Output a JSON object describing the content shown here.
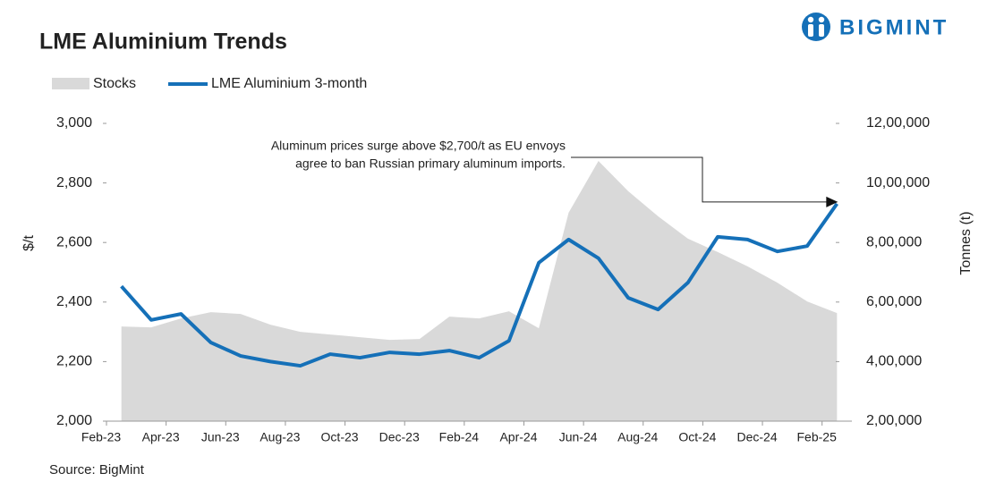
{
  "chart_data": {
    "type": "line",
    "title": "LME Aluminium Trends",
    "logo": "BIGMINT",
    "source": "Source: BigMint",
    "ylabel": "$/t",
    "y2label": "Tonnes (t)",
    "annotation": [
      "Aluminum prices surge above $2,700/t as EU envoys",
      "agree to ban Russian primary aluminum imports."
    ],
    "categories": [
      "Feb-23",
      null,
      "Apr-23",
      null,
      "Jun-23",
      null,
      "Aug-23",
      null,
      "Oct-23",
      null,
      "Dec-23",
      null,
      "Feb-24",
      null,
      "Apr-24",
      null,
      "Jun-24",
      null,
      "Aug-24",
      null,
      "Oct-24",
      null,
      "Dec-24",
      null,
      "Feb-25"
    ],
    "series": [
      {
        "name": "Stocks",
        "kind": "area",
        "axis": "y2",
        "color": "#d9d9d9",
        "values": [
          518000,
          515000,
          545000,
          566000,
          560000,
          524000,
          500000,
          491000,
          482000,
          473000,
          476000,
          551000,
          545000,
          569000,
          512000,
          900000,
          1074000,
          972000,
          888000,
          813000,
          768000,
          720000,
          665000,
          602000,
          563000
        ]
      },
      {
        "name": "LME Aluminium 3-month",
        "kind": "line",
        "axis": "y",
        "color": "#1570b8",
        "values": [
          2453,
          2340,
          2360,
          2264,
          2219,
          2200,
          2186,
          2225,
          2213,
          2231,
          2225,
          2237,
          2213,
          2270,
          2532,
          2610,
          2547,
          2414,
          2375,
          2465,
          2619,
          2610,
          2570,
          2588,
          2730
        ]
      }
    ],
    "ylim": [
      2000,
      3000
    ],
    "yticks": [
      {
        "value": 2000,
        "label": "2,000"
      },
      {
        "value": 2200,
        "label": "2,200"
      },
      {
        "value": 2400,
        "label": "2,400"
      },
      {
        "value": 2600,
        "label": "2,600"
      },
      {
        "value": 2800,
        "label": "2,800"
      },
      {
        "value": 3000,
        "label": "3,000"
      }
    ],
    "y2lim": [
      200000,
      1200000
    ],
    "y2ticks": [
      {
        "value": 200000,
        "label": "2,00,000"
      },
      {
        "value": 400000,
        "label": "4,00,000"
      },
      {
        "value": 600000,
        "label": "6,00,000"
      },
      {
        "value": 800000,
        "label": "8,00,000"
      },
      {
        "value": 1000000,
        "label": "10,00,000"
      },
      {
        "value": 1200000,
        "label": "12,00,000"
      }
    ],
    "grid": false
  }
}
